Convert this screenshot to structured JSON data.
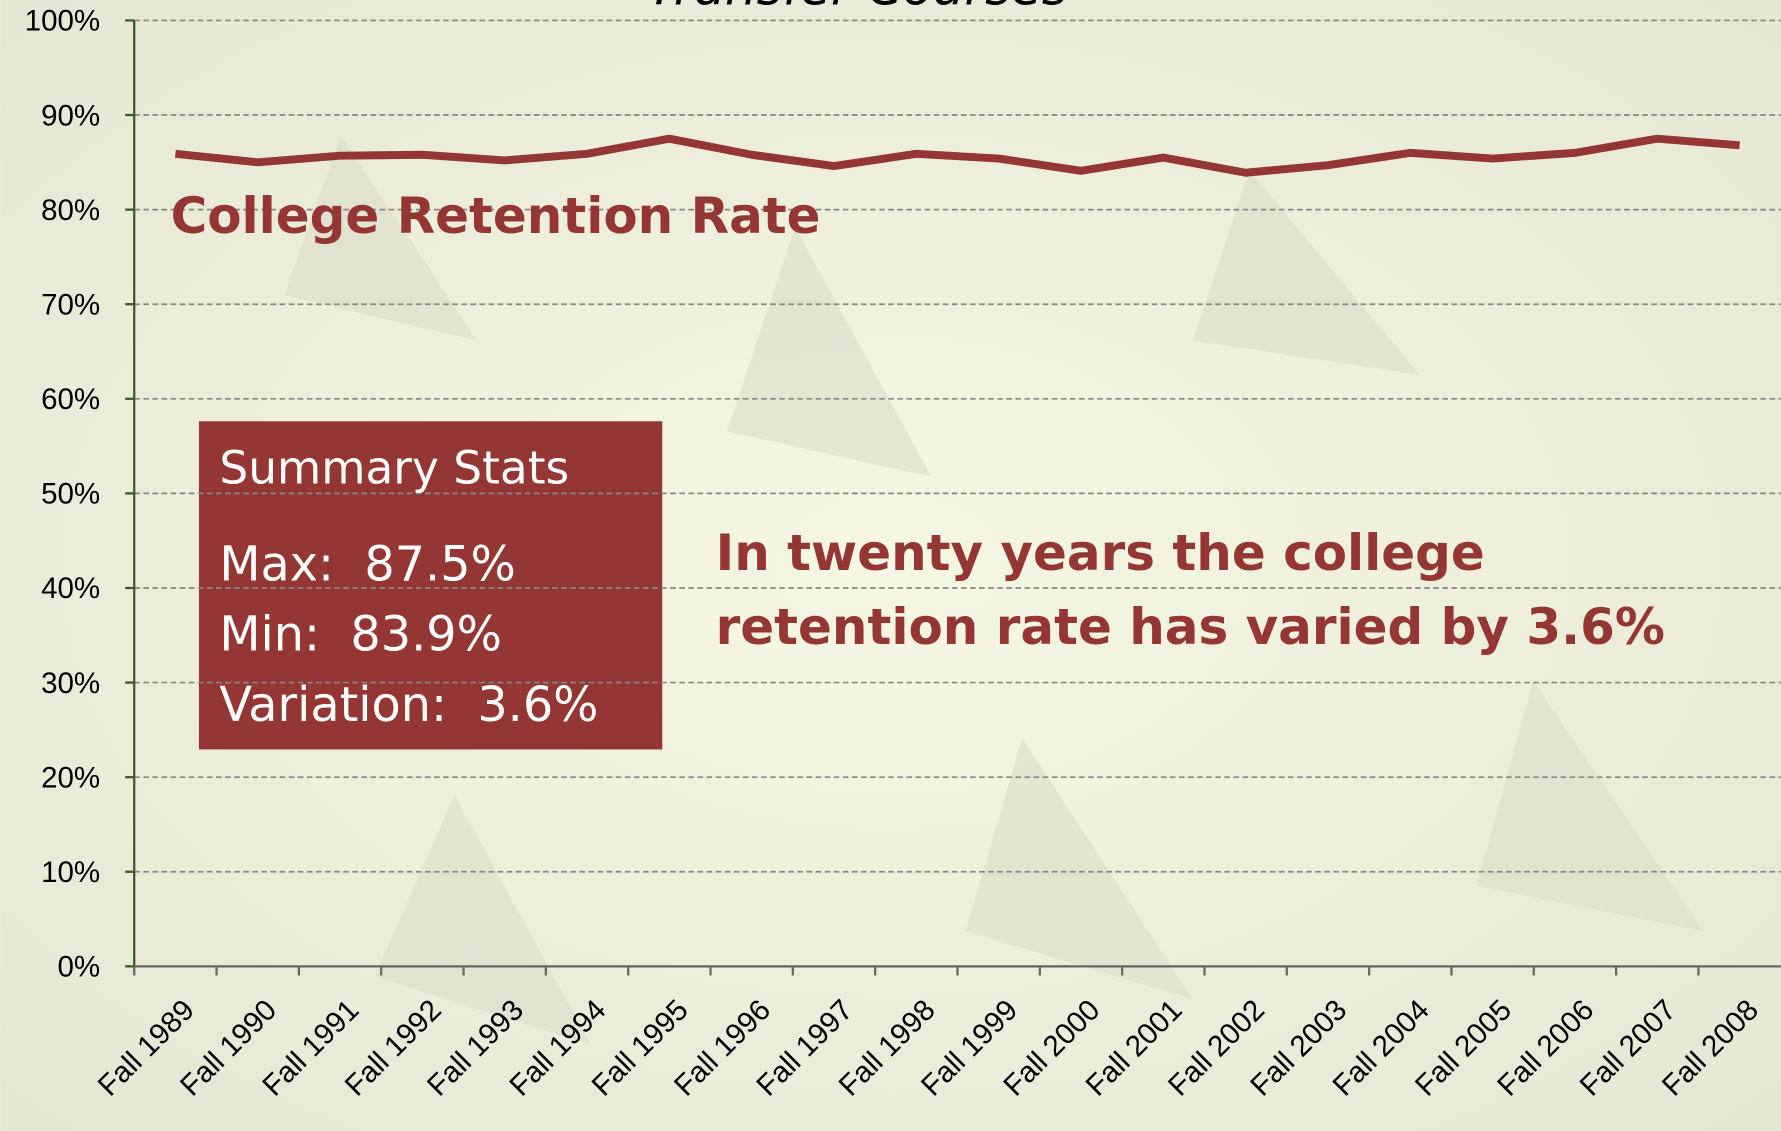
{
  "chart_data": {
    "type": "line",
    "title": "Transfer Courses",
    "categories": [
      "Fall 1989",
      "Fall 1990",
      "Fall 1991",
      "Fall 1992",
      "Fall 1993",
      "Fall 1994",
      "Fall 1995",
      "Fall 1996",
      "Fall 1997",
      "Fall 1998",
      "Fall 1999",
      "Fall 2000",
      "Fall 2001",
      "Fall 2002",
      "Fall 2003",
      "Fall 2004",
      "Fall 2005",
      "Fall 2006",
      "Fall 2007",
      "Fall 2008"
    ],
    "series": [
      {
        "name": "College Retention Rate",
        "color": "#943634",
        "values": [
          85.9,
          85.0,
          85.7,
          85.8,
          85.2,
          85.9,
          87.5,
          85.8,
          84.6,
          85.9,
          85.4,
          84.1,
          85.5,
          83.9,
          84.7,
          86.0,
          85.4,
          86.0,
          87.5,
          86.8
        ]
      }
    ],
    "ylim": [
      0,
      100
    ],
    "yticks": [
      {
        "value": 0,
        "label": "0%"
      },
      {
        "value": 10,
        "label": "10%"
      },
      {
        "value": 20,
        "label": "20%"
      },
      {
        "value": 30,
        "label": "30%"
      },
      {
        "value": 40,
        "label": "40%"
      },
      {
        "value": 50,
        "label": "50%"
      },
      {
        "value": 60,
        "label": "60%"
      },
      {
        "value": 70,
        "label": "70%"
      },
      {
        "value": 80,
        "label": "80%"
      },
      {
        "value": 90,
        "label": "90%"
      },
      {
        "value": 100,
        "label": "100%"
      }
    ],
    "grid": true,
    "summary": {
      "title": "Summary Stats",
      "lines": [
        "Max:  87.5%",
        "Min:  83.9%",
        "Variation:  3.6%"
      ]
    },
    "annotation": [
      "In twenty years the college",
      "retention rate has varied by 3.6%"
    ]
  }
}
